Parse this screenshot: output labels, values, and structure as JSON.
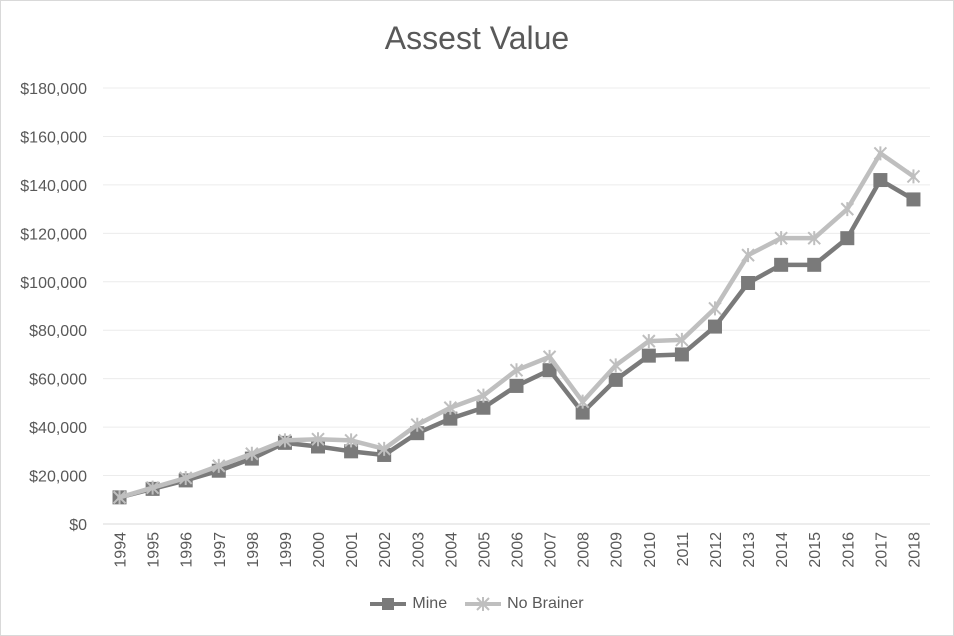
{
  "chart_data": {
    "type": "line",
    "title": "Assest Value",
    "xlabel": "",
    "ylabel": "",
    "ylim": [
      0,
      180000
    ],
    "yticks": [
      0,
      20000,
      40000,
      60000,
      80000,
      100000,
      120000,
      140000,
      160000,
      180000
    ],
    "ytick_labels": [
      "$0",
      "$20,000",
      "$40,000",
      "$60,000",
      "$80,000",
      "$100,000",
      "$120,000",
      "$140,000",
      "$160,000",
      "$180,000"
    ],
    "categories": [
      "1994",
      "1995",
      "1996",
      "1997",
      "1998",
      "1999",
      "2000",
      "2001",
      "2002",
      "2003",
      "2004",
      "2005",
      "2006",
      "2007",
      "2008",
      "2009",
      "2010",
      "2011",
      "2012",
      "2013",
      "2014",
      "2015",
      "2016",
      "2017",
      "2018"
    ],
    "grid": true,
    "legend_position": "bottom",
    "series": [
      {
        "name": "Mine",
        "color": "#7a7a7a",
        "marker": "square",
        "values": [
          11000,
          14500,
          18000,
          22000,
          27000,
          33500,
          32000,
          30000,
          28500,
          37500,
          43500,
          48000,
          57000,
          63500,
          46000,
          59500,
          69500,
          70000,
          81500,
          99500,
          107000,
          107000,
          118000,
          142000,
          134000
        ]
      },
      {
        "name": "No Brainer",
        "color": "#bfbfbf",
        "marker": "x",
        "values": [
          11000,
          15000,
          19000,
          24000,
          29000,
          34500,
          35000,
          34500,
          31000,
          41000,
          48000,
          53000,
          63500,
          69000,
          50500,
          65500,
          75500,
          76000,
          89000,
          111000,
          118000,
          118000,
          130000,
          153000,
          143500
        ]
      }
    ]
  }
}
